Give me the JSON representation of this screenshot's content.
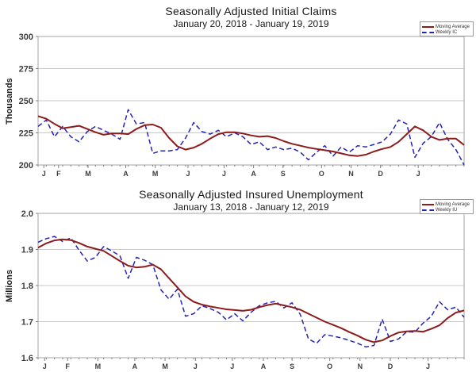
{
  "page_background": "#ffffff",
  "colors": {
    "moving_average": "#8e1b1b",
    "weekly": "#2424b4",
    "gridline": "#c9c9c9",
    "plot_border": "#a3a3a3",
    "tick": "#808080",
    "tick_text": "#3d3d3d"
  },
  "chart_data": [
    {
      "type": "line",
      "title": "Seasonally Adjusted Initial Claims",
      "subtitle": "January 20, 2018 - January 19, 2019",
      "ylabel": "Thousands",
      "ylim": [
        200,
        300
      ],
      "y_ticks": [
        200,
        225,
        250,
        275,
        300
      ],
      "y_tick_labels": [
        "200",
        "225",
        "250",
        "275",
        "300"
      ],
      "grid": "horizontal",
      "legend_position": "top-right",
      "n_weeks": 53,
      "x_month_ticks": [
        {
          "label": "J",
          "week": 0.7
        },
        {
          "label": "F",
          "week": 2.5
        },
        {
          "label": "M",
          "week": 6.1
        },
        {
          "label": "A",
          "week": 10.7
        },
        {
          "label": "M",
          "week": 14.3
        },
        {
          "label": "J",
          "week": 18.3
        },
        {
          "label": "J",
          "week": 22.7
        },
        {
          "label": "A",
          "week": 26.3
        },
        {
          "label": "S",
          "week": 29.9
        },
        {
          "label": "O",
          "week": 34.6
        },
        {
          "label": "N",
          "week": 38.2
        },
        {
          "label": "D",
          "week": 41.8
        },
        {
          "label": "J",
          "week": 46.4
        }
      ],
      "series": [
        {
          "name": "Moving Average",
          "color": "#8e1b1b",
          "line_style": "solid",
          "values": [
            238,
            236,
            232,
            228.5,
            229.5,
            230.5,
            228,
            225.5,
            223.5,
            224.5,
            224.5,
            224,
            228,
            231,
            231.5,
            229,
            221,
            214.5,
            212,
            213.5,
            216.5,
            220.5,
            224,
            225.5,
            225.5,
            224.5,
            223,
            222,
            222.5,
            221,
            218.5,
            216.5,
            215,
            213.5,
            212.5,
            211.5,
            210.5,
            209,
            207.5,
            207,
            208,
            210.5,
            212.5,
            214,
            218,
            224,
            230,
            227,
            222,
            219.5,
            220.5,
            220.5,
            215.5
          ]
        },
        {
          "name": "Weekly IC",
          "color": "#2424b4",
          "line_style": "dashed",
          "values": [
            230,
            235,
            222,
            230,
            222,
            218,
            226,
            230,
            227,
            224,
            220,
            243,
            232,
            233,
            209,
            211,
            211,
            212,
            221,
            233,
            226,
            224,
            227,
            222,
            225,
            222,
            216,
            218,
            212,
            214,
            212,
            213,
            210,
            204,
            210,
            215,
            207,
            214,
            210,
            215,
            214,
            216,
            218,
            224,
            235,
            232,
            206,
            217,
            222,
            233,
            220,
            212,
            200
          ]
        }
      ]
    },
    {
      "type": "line",
      "title": "Seasonally Adjusted Insured Unemployment",
      "subtitle": "January 13, 2018 - January 12, 2019",
      "ylabel": "Millions",
      "ylim": [
        1.6,
        2.0
      ],
      "y_ticks": [
        1.6,
        1.7,
        1.8,
        1.9,
        2.0
      ],
      "y_tick_labels": [
        "1.6",
        "1.7",
        "1.8",
        "1.9",
        "2.0"
      ],
      "grid": "horizontal",
      "legend_position": "top-right",
      "n_weeks": 53,
      "x_month_ticks": [
        {
          "label": "J",
          "week": 0.8
        },
        {
          "label": "F",
          "week": 3.6
        },
        {
          "label": "M",
          "week": 7.3
        },
        {
          "label": "A",
          "week": 11.8
        },
        {
          "label": "M",
          "week": 15.5
        },
        {
          "label": "J",
          "week": 19.2
        },
        {
          "label": "J",
          "week": 23.7
        },
        {
          "label": "A",
          "week": 27.5
        },
        {
          "label": "S",
          "week": 31.0
        },
        {
          "label": "O",
          "week": 35.6
        },
        {
          "label": "N",
          "week": 39.3
        },
        {
          "label": "D",
          "week": 43.0
        },
        {
          "label": "J",
          "week": 47.6
        }
      ],
      "series": [
        {
          "name": "Moving Average",
          "color": "#8e1b1b",
          "line_style": "solid",
          "values": [
            1.905,
            1.917,
            1.925,
            1.928,
            1.926,
            1.918,
            1.908,
            1.902,
            1.896,
            1.882,
            1.868,
            1.855,
            1.85,
            1.852,
            1.858,
            1.845,
            1.82,
            1.795,
            1.77,
            1.755,
            1.747,
            1.742,
            1.738,
            1.734,
            1.732,
            1.73,
            1.733,
            1.74,
            1.746,
            1.75,
            1.745,
            1.74,
            1.733,
            1.722,
            1.711,
            1.7,
            1.691,
            1.682,
            1.671,
            1.661,
            1.65,
            1.643,
            1.648,
            1.66,
            1.67,
            1.673,
            1.674,
            1.672,
            1.68,
            1.69,
            1.71,
            1.725,
            1.731
          ]
        },
        {
          "name": "Weekly IU",
          "color": "#2424b4",
          "line_style": "dashed",
          "values": [
            1.92,
            1.93,
            1.936,
            1.922,
            1.932,
            1.898,
            1.868,
            1.878,
            1.908,
            1.896,
            1.882,
            1.82,
            1.878,
            1.87,
            1.858,
            1.788,
            1.762,
            1.79,
            1.715,
            1.722,
            1.744,
            1.736,
            1.726,
            1.705,
            1.722,
            1.702,
            1.726,
            1.744,
            1.752,
            1.756,
            1.738,
            1.752,
            1.72,
            1.652,
            1.64,
            1.664,
            1.66,
            1.655,
            1.648,
            1.64,
            1.63,
            1.634,
            1.707,
            1.645,
            1.652,
            1.672,
            1.671,
            1.696,
            1.715,
            1.755,
            1.733,
            1.74,
            1.712
          ]
        }
      ]
    }
  ]
}
